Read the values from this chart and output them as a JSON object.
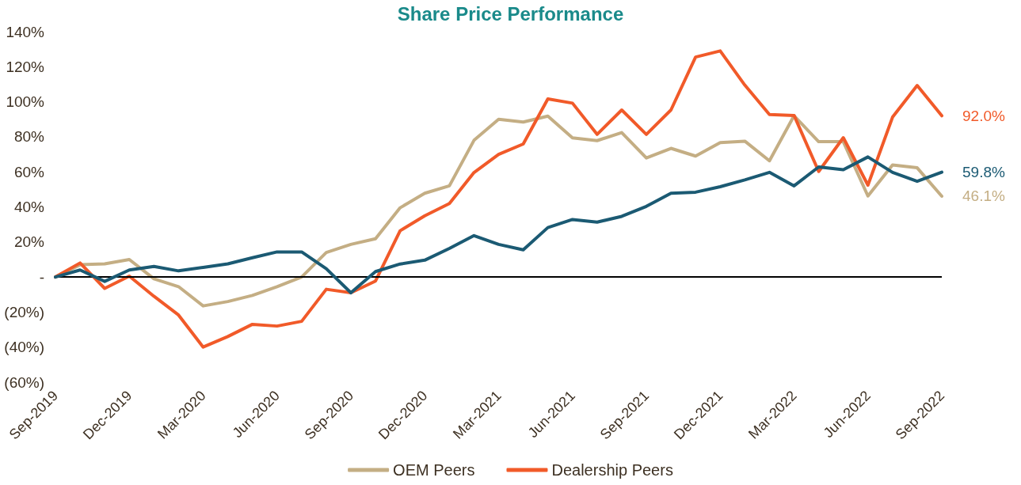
{
  "chart_data": {
    "type": "line",
    "title": "Share Price Performance",
    "categories": [
      "Sep-2019",
      null,
      null,
      "Dec-2019",
      null,
      null,
      "Mar-2020",
      null,
      null,
      "Jun-2020",
      null,
      null,
      "Sep-2020",
      null,
      null,
      "Dec-2020",
      null,
      null,
      "Mar-2021",
      null,
      null,
      "Jun-2021",
      null,
      null,
      "Sep-2021",
      null,
      null,
      "Dec-2021",
      null,
      null,
      "Mar-2022",
      null,
      null,
      "Jun-2022",
      null,
      null,
      "Sep-2022"
    ],
    "series": [
      {
        "name": "OEM Peers",
        "color": "#c4ae84",
        "values": [
          0,
          7,
          7.5,
          10,
          -1,
          -5.5,
          -16.5,
          -14,
          -10.5,
          -5.5,
          0,
          14,
          18.6,
          21.8,
          39.5,
          47.8,
          52,
          78,
          90,
          88.4,
          91.8,
          79.4,
          77.8,
          82.4,
          67.9,
          73.4,
          69,
          76.7,
          77.5,
          66.3,
          92,
          77.2,
          77.2,
          46.2,
          63.9,
          62.3,
          46.1
        ],
        "value_labels": [
          null,
          null,
          null,
          null,
          null,
          null,
          null,
          null,
          null,
          null,
          null,
          null,
          null,
          null,
          null,
          null,
          null,
          null,
          null,
          null,
          null,
          null,
          null,
          null,
          null,
          null,
          null,
          null,
          null,
          null,
          null,
          null,
          null,
          null,
          null,
          null,
          "46.1%"
        ]
      },
      {
        "name": "Dealership Peers",
        "color": "#f15a29",
        "values": [
          0,
          8,
          -6.5,
          0.5,
          -11,
          -21.7,
          -40,
          -34,
          -27,
          -28,
          -25.3,
          -7,
          -9,
          -2.3,
          26.4,
          34.9,
          41.9,
          59.6,
          70,
          75.9,
          101.6,
          99.2,
          81.4,
          95.3,
          81.4,
          95.3,
          125.5,
          129,
          109.5,
          92.7,
          92.2,
          60.2,
          79.5,
          52.4,
          91.2,
          109.3,
          92.0
        ],
        "value_labels": [
          null,
          null,
          null,
          null,
          null,
          null,
          null,
          null,
          null,
          null,
          null,
          null,
          null,
          null,
          null,
          null,
          null,
          null,
          null,
          null,
          null,
          null,
          null,
          null,
          null,
          null,
          null,
          null,
          null,
          null,
          null,
          null,
          null,
          null,
          null,
          null,
          "92.0%"
        ]
      },
      {
        "color": "#1b5a73",
        "values": [
          0,
          4,
          -2.5,
          4,
          6,
          3.5,
          5.5,
          7.5,
          11,
          14.3,
          14.3,
          4.7,
          -9,
          3.1,
          7.4,
          9.6,
          16.3,
          23.6,
          18.6,
          15.5,
          28.2,
          32.8,
          31.3,
          34.6,
          40.3,
          47.8,
          48.4,
          51.5,
          55.4,
          59.7,
          52,
          62.8,
          61.2,
          68.5,
          59.7,
          54.6,
          59.8
        ],
        "value_labels": [
          null,
          null,
          null,
          null,
          null,
          null,
          null,
          null,
          null,
          null,
          null,
          null,
          null,
          null,
          null,
          null,
          null,
          null,
          null,
          null,
          null,
          null,
          null,
          null,
          null,
          null,
          null,
          null,
          null,
          null,
          null,
          null,
          null,
          null,
          null,
          null,
          "59.8%"
        ]
      }
    ],
    "ylim": [
      -60,
      140
    ],
    "yticks": [
      {
        "value": -60,
        "label": "(60%)"
      },
      {
        "value": -40,
        "label": "(40%)"
      },
      {
        "value": -20,
        "label": "(20%)"
      },
      {
        "value": 0,
        "label": "-"
      },
      {
        "value": 20,
        "label": "20%"
      },
      {
        "value": 40,
        "label": "40%"
      },
      {
        "value": 60,
        "label": "60%"
      },
      {
        "value": 80,
        "label": "80%"
      },
      {
        "value": 100,
        "label": "100%"
      },
      {
        "value": 120,
        "label": "120%"
      },
      {
        "value": 140,
        "label": "140%"
      }
    ],
    "ref_lines": [
      {
        "axis": "y",
        "value": 0,
        "color": "#000000"
      }
    ],
    "grid": false,
    "legend": "bottom",
    "marker": "none",
    "line_style": "solid"
  }
}
